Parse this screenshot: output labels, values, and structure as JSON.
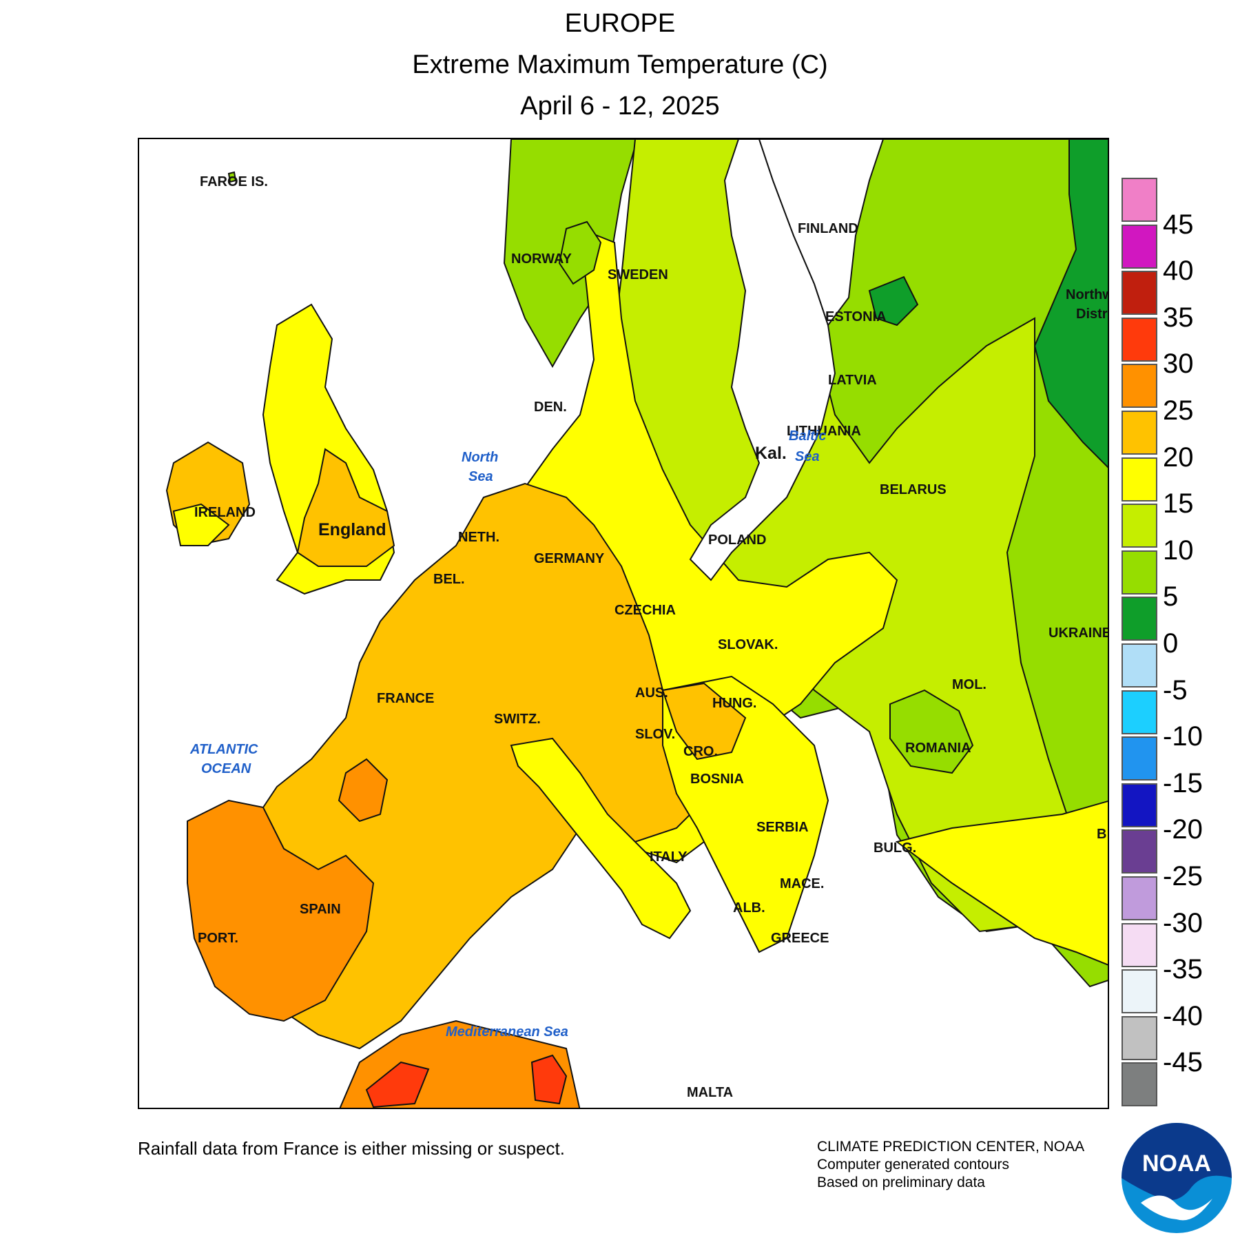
{
  "header": {
    "region": "EUROPE",
    "title": "Extreme Maximum Temperature (C)",
    "dates": "April 6 - 12, 2025"
  },
  "map": {
    "countries": [
      "FAROE IS.",
      "NORWAY",
      "SWEDEN",
      "FINLAND",
      "ESTONIA",
      "LATVIA",
      "LITHUANIA",
      "Kal.",
      "BELARUS",
      "Northw",
      "Distri",
      "DEN.",
      "IRELAND",
      "England",
      "NETH.",
      "BEL.",
      "GERMANY",
      "POLAND",
      "CZECHIA",
      "SLOVAK.",
      "UKRAINE",
      "MOL.",
      "FRANCE",
      "SWITZ.",
      "AUS.",
      "HUNG.",
      "ROMANIA",
      "SLOV.",
      "CRO.",
      "BOSNIA",
      "SERBIA",
      "BULG.",
      "ITALY",
      "MACE.",
      "ALB.",
      "GREECE",
      "SPAIN",
      "PORT.",
      "MALTA",
      "B"
    ],
    "seas": {
      "north_sea_1": "North",
      "north_sea_2": "Sea",
      "baltic_1": "Baltic",
      "baltic_2": "Sea",
      "atlantic_1": "ATLANTIC",
      "atlantic_2": "OCEAN",
      "med": "Mediterranean Sea"
    }
  },
  "legend": {
    "unit": "C",
    "bins": [
      {
        "label": "",
        "color": "#f07fc7"
      },
      {
        "label": "45",
        "color": "#d117c0"
      },
      {
        "label": "40",
        "color": "#c01f0e"
      },
      {
        "label": "35",
        "color": "#ff3a0c"
      },
      {
        "label": "30",
        "color": "#ff9100"
      },
      {
        "label": "25",
        "color": "#ffc200"
      },
      {
        "label": "20",
        "color": "#ffff00"
      },
      {
        "label": "15",
        "color": "#c5ee00"
      },
      {
        "label": "10",
        "color": "#96dd00"
      },
      {
        "label": "5",
        "color": "#0f9e2a"
      },
      {
        "label": "0",
        "color": "#b0def7"
      },
      {
        "label": "-5",
        "color": "#1ccfff"
      },
      {
        "label": "-10",
        "color": "#2194ef"
      },
      {
        "label": "-15",
        "color": "#1315c2"
      },
      {
        "label": "-20",
        "color": "#6a3e92"
      },
      {
        "label": "-25",
        "color": "#c09bdc"
      },
      {
        "label": "-30",
        "color": "#f5dcf3"
      },
      {
        "label": "-35",
        "color": "#ecf4f9"
      },
      {
        "label": "-40",
        "color": "#c1c1c1"
      },
      {
        "label": "-45",
        "color": "#7d7f7f"
      }
    ]
  },
  "footer": {
    "note": "Rainfall data from France is either missing or suspect.",
    "credit_1": "CLIMATE PREDICTION CENTER, NOAA",
    "credit_2": "Computer generated contours",
    "credit_3": "Based on preliminary data",
    "logo_text": "NOAA"
  }
}
